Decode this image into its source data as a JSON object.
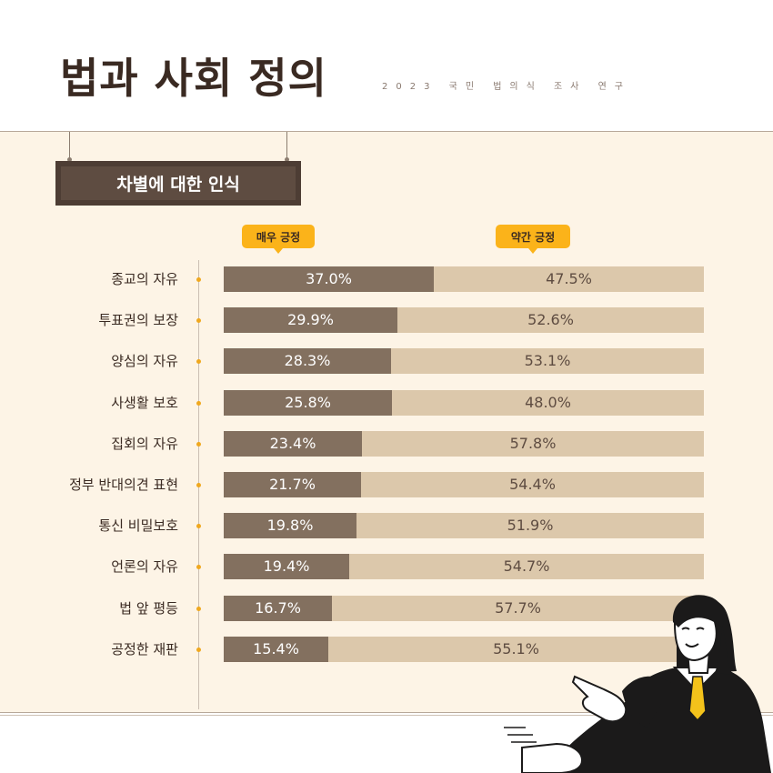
{
  "header": {
    "title": "법과 사회 정의",
    "subtitle": "2023 국민 법의식 조사 연구"
  },
  "section": {
    "title": "차별에 대한 인식"
  },
  "legend": {
    "strong": "매우 긍정",
    "weak": "약간 긍정"
  },
  "colors": {
    "strong": "#83705f",
    "weak": "#dcc8ab",
    "accent": "#fbb31a",
    "panel": "#fdf4e6",
    "banner": "#5e4c41"
  },
  "chart_data": {
    "type": "bar",
    "orientation": "horizontal",
    "stacked": true,
    "unit": "%",
    "categories": [
      "종교의 자유",
      "투표권의 보장",
      "양심의 자유",
      "사생활 보호",
      "집회의 자유",
      "정부 반대의견 표현",
      "통신 비밀보호",
      "언론의 자유",
      "법 앞 평등",
      "공정한 재판"
    ],
    "series": [
      {
        "name": "매우 긍정",
        "values": [
          37.0,
          29.9,
          28.3,
          25.8,
          23.4,
          21.7,
          19.8,
          19.4,
          16.7,
          15.4
        ]
      },
      {
        "name": "약간 긍정",
        "values": [
          47.5,
          52.6,
          53.1,
          48.0,
          57.8,
          54.4,
          51.9,
          54.7,
          57.7,
          55.1
        ]
      }
    ],
    "labels": {
      "strong": [
        "37.0%",
        "29.9%",
        "28.3%",
        "25.8%",
        "23.4%",
        "21.7%",
        "19.8%",
        "19.4%",
        "16.7%",
        "15.4%"
      ],
      "weak": [
        "47.5%",
        "52.6%",
        "53.1%",
        "48.0%",
        "57.8%",
        "54.4%",
        "51.9%",
        "54.7%",
        "57.7%",
        "55.1%"
      ]
    },
    "legend_position": "top"
  }
}
